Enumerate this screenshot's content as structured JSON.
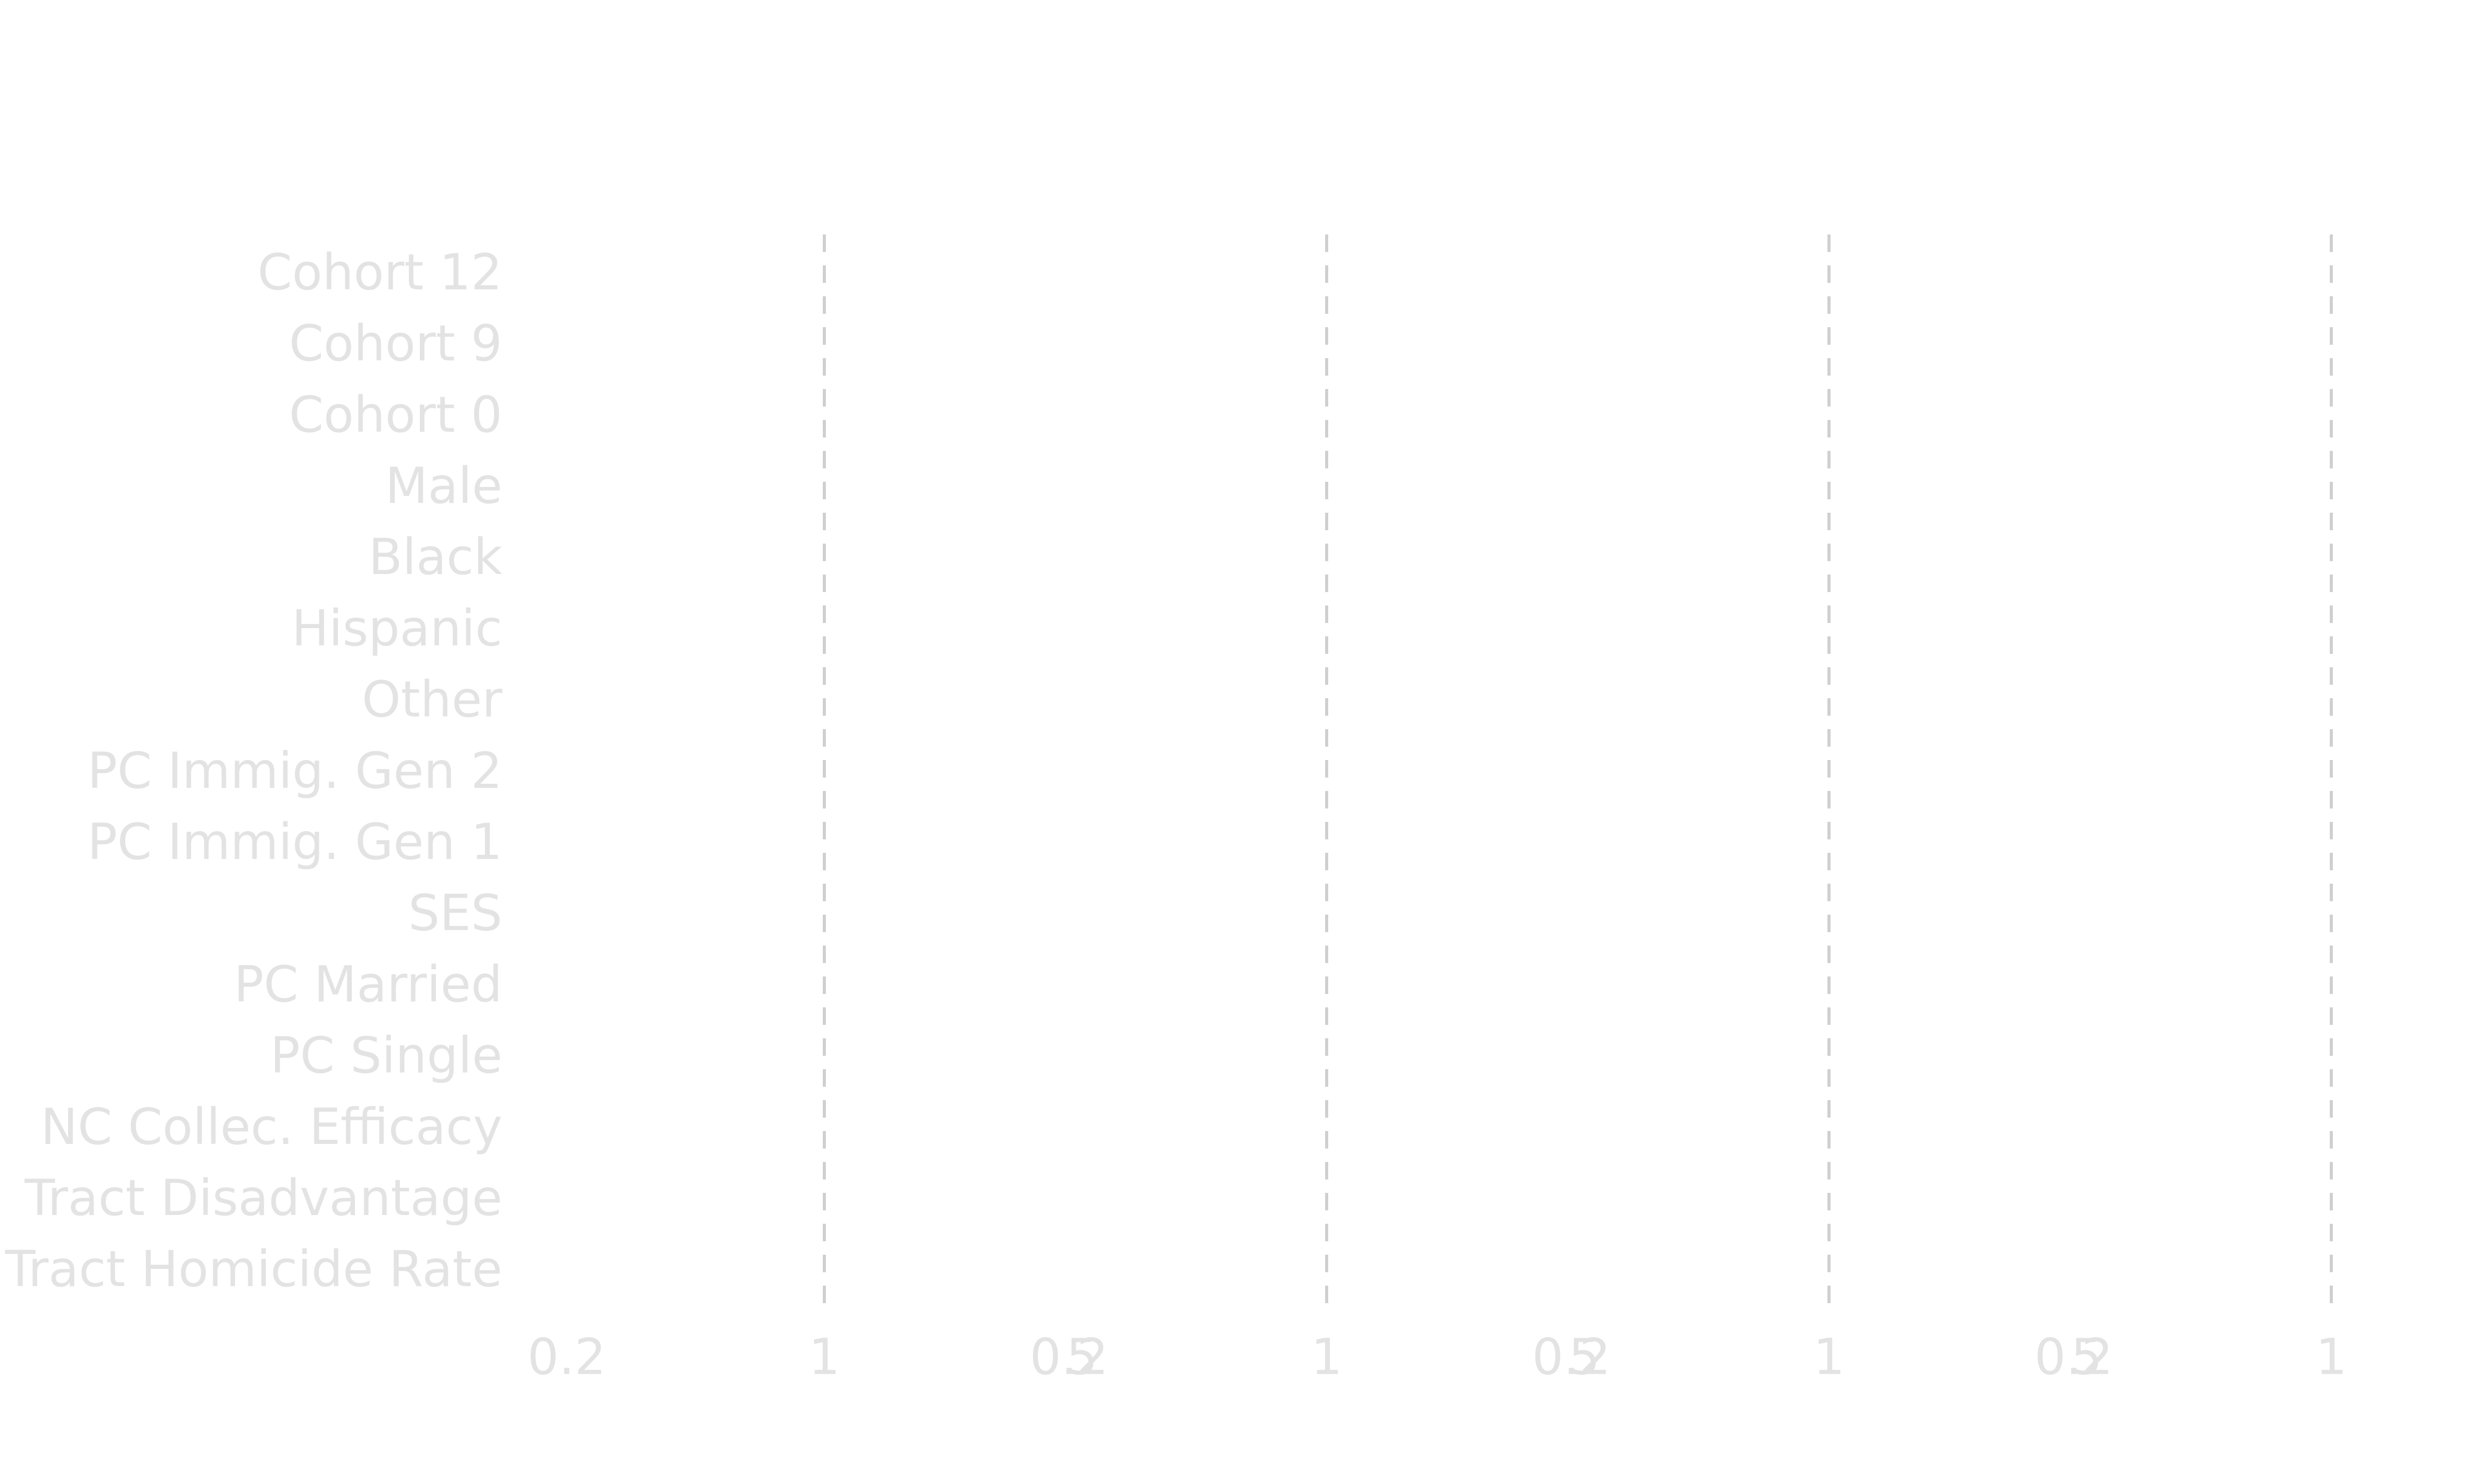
{
  "chart_data": {
    "type": "forest",
    "x_scale": "log",
    "panels": 4,
    "x_ticks": [
      0.2,
      1,
      5
    ],
    "x_tick_labels": [
      "0.2",
      "1",
      "5"
    ],
    "xlim": [
      0.2,
      5
    ],
    "reference_line": 1,
    "reference_line_style": "dashed",
    "rows": [
      "Cohort 12",
      "Cohort 9",
      "Cohort 0",
      "Male",
      "Black",
      "Hispanic",
      "Other",
      "PC Immig. Gen 2",
      "PC Immig. Gen 1",
      "SES",
      "PC Married",
      "PC Single",
      "NC Collec. Efficacy",
      "Tract Disadvantage",
      "Tract Homicide Rate"
    ],
    "colors": {
      "text": "#e3e3e3",
      "reference_line": "#cfcfcf",
      "background": "#ffffff"
    }
  }
}
